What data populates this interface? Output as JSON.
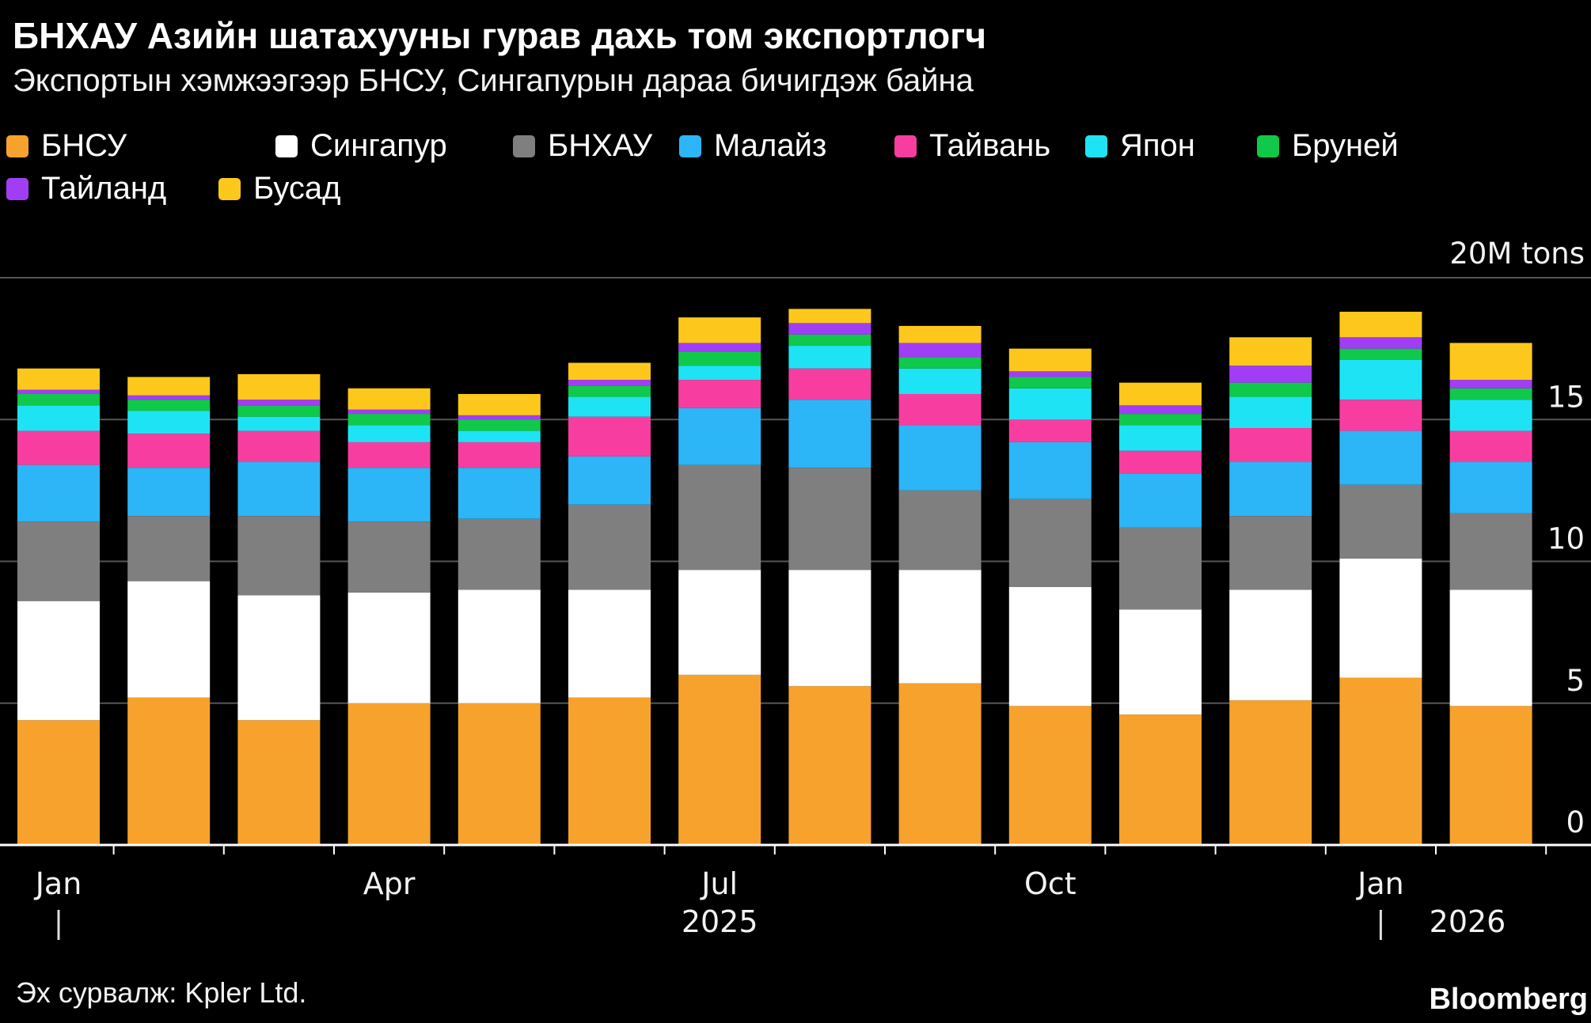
{
  "header": {
    "title": "БНХАУ Азийн шатахууны гурав дахь том экспортлогч",
    "subtitle": "Экспортын хэмжээгээр БНСУ, Сингапурын дараа бичигдэж байна"
  },
  "footer": {
    "source": "Эх сурвалж: Kpler Ltd.",
    "brand": "Bloomberg"
  },
  "chart_data": {
    "type": "bar",
    "stacked": true,
    "title": "БНХАУ Азийн шатахууны гурав дахь том экспортлогч",
    "subtitle": "Экспортын хэмжээгээр БНСУ, Сингапурын дараа бичигдэж байна",
    "unit_label": "20M tons",
    "ylim": [
      0,
      20
    ],
    "yticks": [
      0,
      5,
      10,
      15
    ],
    "ytick_labels": [
      "0",
      "5",
      "10",
      "15"
    ],
    "grid": true,
    "legend_position": "top-left",
    "categories": [
      "Jan 2025",
      "Feb 2025",
      "Mar 2025",
      "Apr 2025",
      "May 2025",
      "Jun 2025",
      "Jul 2025",
      "Aug 2025",
      "Sep 2025",
      "Oct 2025",
      "Nov 2025",
      "Dec 2025",
      "Jan 2026",
      "Feb 2026"
    ],
    "x_tick_labels": [
      {
        "index": 0,
        "label": "Jan"
      },
      {
        "index": 3,
        "label": "Apr"
      },
      {
        "index": 6,
        "label": "Jul"
      },
      {
        "index": 9,
        "label": "Oct"
      },
      {
        "index": 12,
        "label": "Jan"
      }
    ],
    "year_labels": [
      {
        "index": 6,
        "label": "2025"
      },
      {
        "index": 13,
        "label": "2026"
      }
    ],
    "year_separators": [
      0,
      12
    ],
    "series": [
      {
        "name": "БНСУ",
        "color": "#f7a22c",
        "values": [
          4.4,
          5.2,
          4.4,
          5.0,
          5.0,
          5.2,
          6.0,
          5.6,
          5.7,
          4.9,
          4.6,
          5.1,
          5.9,
          4.9
        ]
      },
      {
        "name": "Сингапур",
        "color": "#ffffff",
        "values": [
          4.2,
          4.1,
          4.4,
          3.9,
          4.0,
          3.8,
          3.7,
          4.1,
          4.0,
          4.2,
          3.7,
          3.9,
          4.2,
          4.1
        ]
      },
      {
        "name": "БНХАУ",
        "color": "#7f7f7f",
        "values": [
          2.8,
          2.3,
          2.8,
          2.5,
          2.5,
          3.0,
          3.7,
          3.6,
          2.8,
          3.1,
          2.9,
          2.6,
          2.6,
          2.7
        ]
      },
      {
        "name": "Малайз",
        "color": "#2cb5f7",
        "values": [
          2.0,
          1.7,
          1.9,
          1.9,
          1.8,
          1.7,
          2.0,
          2.4,
          2.3,
          2.0,
          1.9,
          1.9,
          1.9,
          1.8
        ]
      },
      {
        "name": "Тайвань",
        "color": "#f73ea0",
        "values": [
          1.2,
          1.2,
          1.1,
          0.9,
          0.9,
          1.4,
          1.0,
          1.1,
          1.1,
          0.8,
          0.8,
          1.2,
          1.1,
          1.1
        ]
      },
      {
        "name": "Япон",
        "color": "#1ee3f5",
        "values": [
          0.9,
          0.8,
          0.5,
          0.6,
          0.4,
          0.7,
          0.5,
          0.8,
          0.9,
          1.1,
          0.9,
          1.1,
          1.4,
          1.1
        ]
      },
      {
        "name": "Бруней",
        "color": "#10c84a",
        "values": [
          0.4,
          0.4,
          0.4,
          0.4,
          0.4,
          0.4,
          0.5,
          0.4,
          0.4,
          0.4,
          0.4,
          0.5,
          0.4,
          0.4
        ]
      },
      {
        "name": "Тайланд",
        "color": "#a13ef5",
        "values": [
          0.15,
          0.15,
          0.2,
          0.15,
          0.15,
          0.2,
          0.3,
          0.4,
          0.5,
          0.2,
          0.3,
          0.6,
          0.4,
          0.3
        ]
      },
      {
        "name": "Бусад",
        "color": "#fdc81b",
        "values": [
          0.75,
          0.65,
          0.9,
          0.75,
          0.75,
          0.6,
          0.9,
          0.5,
          0.6,
          0.8,
          0.8,
          1.0,
          0.9,
          1.3
        ]
      }
    ]
  }
}
